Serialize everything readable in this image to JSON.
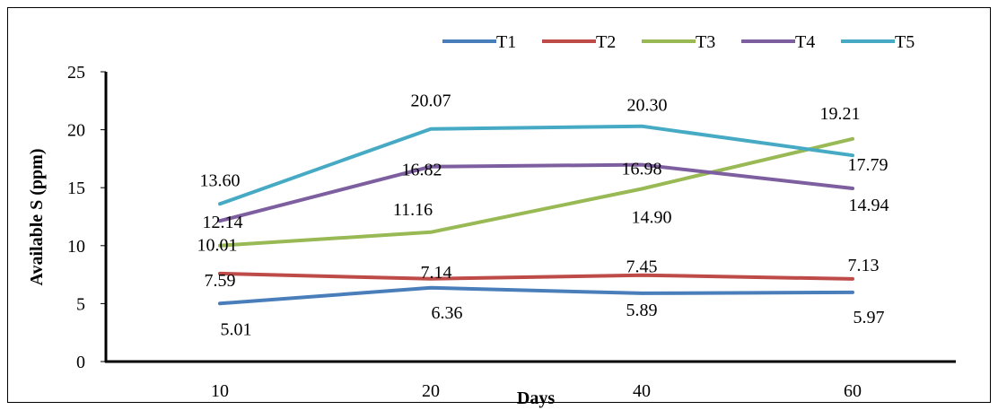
{
  "chart_data": {
    "type": "line",
    "categories": [
      "10",
      "20",
      "40",
      "60"
    ],
    "xlabel": "Days",
    "ylabel": "Available S (ppm)",
    "ylim": [
      0,
      25
    ],
    "yticks": [
      0,
      5,
      10,
      15,
      20,
      25
    ],
    "grid": false,
    "legend": "top-right",
    "series": [
      {
        "name": "T1",
        "color": "#4a7ebb",
        "values": [
          5.01,
          6.36,
          5.89,
          5.97
        ]
      },
      {
        "name": "T2",
        "color": "#be4b48",
        "values": [
          7.59,
          7.14,
          7.45,
          7.13
        ]
      },
      {
        "name": "T3",
        "color": "#98b954",
        "values": [
          10.01,
          11.16,
          14.9,
          19.21
        ]
      },
      {
        "name": "T4",
        "color": "#7d5fa0",
        "values": [
          12.14,
          16.82,
          16.98,
          14.94
        ]
      },
      {
        "name": "T5",
        "color": "#46aac5",
        "values": [
          13.6,
          20.07,
          20.3,
          17.79
        ]
      }
    ],
    "data_labels": [
      [
        "5.01",
        "6.36",
        "5.89",
        "5.97"
      ],
      [
        "7.59",
        "7.14",
        "7.45",
        "7.13"
      ],
      [
        "10.01",
        "11.16",
        "14.90",
        "19.21"
      ],
      [
        "12.14",
        "16.82",
        "16.98",
        "14.94"
      ],
      [
        "13.60",
        "20.07",
        "20.30",
        "17.79"
      ]
    ]
  }
}
